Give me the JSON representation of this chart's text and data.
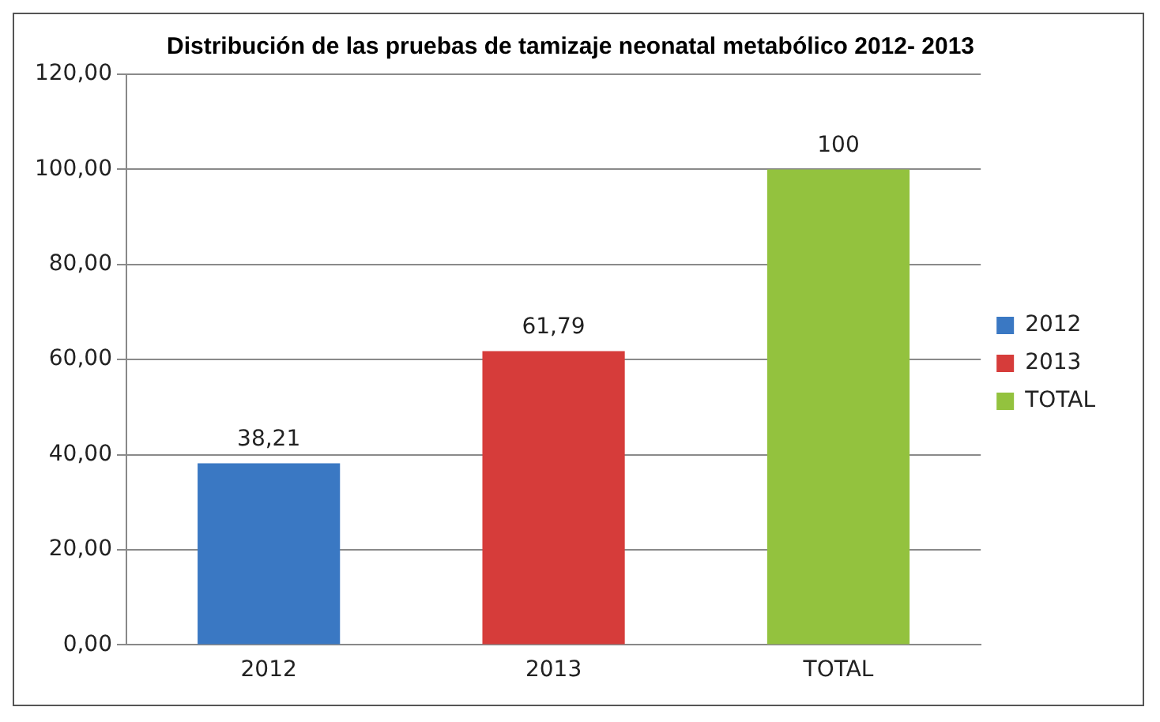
{
  "chart_data": {
    "type": "bar",
    "title": "Distribución de las pruebas de tamizaje neonatal metabólico 2012- 2013",
    "categories": [
      "2012",
      "2013",
      "TOTAL"
    ],
    "series": [
      {
        "name": "2012",
        "color": "#3a78c3",
        "values": [
          38.21,
          null,
          null
        ],
        "value_labels": [
          "38,21",
          null,
          null
        ]
      },
      {
        "name": "2013",
        "color": "#d63c3a",
        "values": [
          null,
          61.79,
          null
        ],
        "value_labels": [
          null,
          "61,79",
          null
        ]
      },
      {
        "name": "TOTAL",
        "color": "#93c23e",
        "values": [
          null,
          null,
          100
        ],
        "value_labels": [
          null,
          null,
          "100"
        ]
      }
    ],
    "ylim": [
      0,
      120
    ],
    "yticks": [
      {
        "value": 0,
        "label": "0,00"
      },
      {
        "value": 20,
        "label": "20,00"
      },
      {
        "value": 40,
        "label": "40,00"
      },
      {
        "value": 60,
        "label": "60,00"
      },
      {
        "value": 80,
        "label": "80,00"
      },
      {
        "value": 100,
        "label": "100,00"
      },
      {
        "value": 120,
        "label": "120,00"
      }
    ],
    "grid": "y",
    "legend": "right"
  }
}
